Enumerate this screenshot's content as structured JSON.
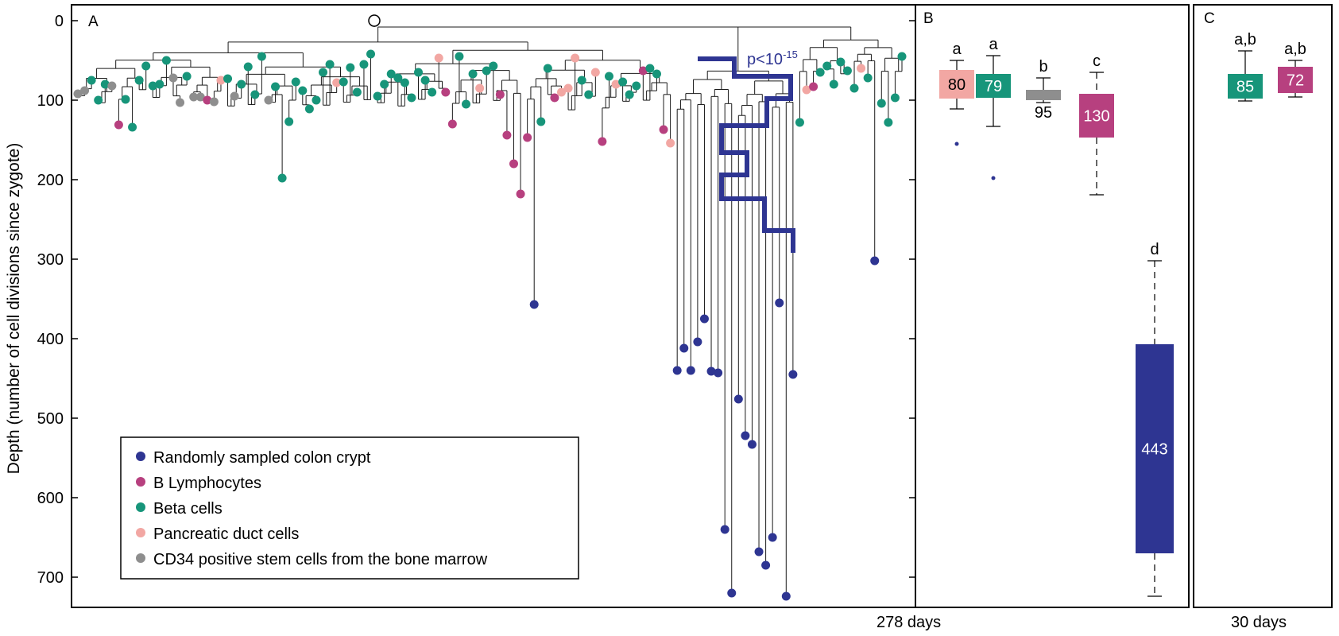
{
  "colors": {
    "colon": "#2e3592",
    "blymph": "#b7407f",
    "beta": "#17957a",
    "duct": "#f2a7a3",
    "cd34": "#8e8e8e",
    "frame": "#000000",
    "tree": "#1a1a1a"
  },
  "panels": {
    "A": {
      "label": "A"
    },
    "B": {
      "label": "B",
      "caption": "278 days"
    },
    "C": {
      "label": "C",
      "caption": "30 days"
    }
  },
  "y_axis": {
    "label": "Depth (number of cell divisions since zygote)",
    "ticks": [
      0,
      100,
      200,
      300,
      400,
      500,
      600,
      700
    ],
    "range": [
      -20,
      735
    ]
  },
  "annotation": {
    "pvalue": "p<10-15",
    "base": "p<10",
    "exp": "-15"
  },
  "legend": [
    {
      "key": "colon",
      "label": "Randomly sampled colon crypt"
    },
    {
      "key": "blymph",
      "label": "B Lymphocytes"
    },
    {
      "key": "beta",
      "label": "Beta cells"
    },
    {
      "key": "duct",
      "label": "Pancreatic duct cells"
    },
    {
      "key": "cd34",
      "label": "CD34 positive stem cells from the bone marrow"
    }
  ],
  "chart_data": [
    {
      "type": "scatter",
      "panel": "A",
      "description_kind": "lineage tree leaf depths",
      "ylabel": "Depth (number of cell divisions since zygote)",
      "ylim": [
        0,
        730
      ],
      "leaves": [
        {
          "cell": "cd34",
          "depth": 92
        },
        {
          "cell": "cd34",
          "depth": 88
        },
        {
          "cell": "beta",
          "depth": 75
        },
        {
          "cell": "beta",
          "depth": 100
        },
        {
          "cell": "beta",
          "depth": 80
        },
        {
          "cell": "cd34",
          "depth": 82
        },
        {
          "cell": "blymph",
          "depth": 131
        },
        {
          "cell": "beta",
          "depth": 99
        },
        {
          "cell": "beta",
          "depth": 134
        },
        {
          "cell": "beta",
          "depth": 75
        },
        {
          "cell": "beta",
          "depth": 57
        },
        {
          "cell": "beta",
          "depth": 82
        },
        {
          "cell": "beta",
          "depth": 80
        },
        {
          "cell": "beta",
          "depth": 50
        },
        {
          "cell": "cd34",
          "depth": 72
        },
        {
          "cell": "cd34",
          "depth": 103
        },
        {
          "cell": "beta",
          "depth": 70
        },
        {
          "cell": "cd34",
          "depth": 96
        },
        {
          "cell": "cd34",
          "depth": 96
        },
        {
          "cell": "blymph",
          "depth": 100
        },
        {
          "cell": "cd34",
          "depth": 102
        },
        {
          "cell": "duct",
          "depth": 75
        },
        {
          "cell": "beta",
          "depth": 73
        },
        {
          "cell": "cd34",
          "depth": 95
        },
        {
          "cell": "beta",
          "depth": 80
        },
        {
          "cell": "beta",
          "depth": 58
        },
        {
          "cell": "beta",
          "depth": 93
        },
        {
          "cell": "beta",
          "depth": 45
        },
        {
          "cell": "cd34",
          "depth": 100
        },
        {
          "cell": "beta",
          "depth": 83
        },
        {
          "cell": "beta",
          "depth": 198
        },
        {
          "cell": "beta",
          "depth": 127
        },
        {
          "cell": "beta",
          "depth": 77
        },
        {
          "cell": "beta",
          "depth": 88
        },
        {
          "cell": "beta",
          "depth": 111
        },
        {
          "cell": "beta",
          "depth": 100
        },
        {
          "cell": "beta",
          "depth": 65
        },
        {
          "cell": "beta",
          "depth": 55
        },
        {
          "cell": "duct",
          "depth": 78
        },
        {
          "cell": "beta",
          "depth": 77
        },
        {
          "cell": "beta",
          "depth": 59
        },
        {
          "cell": "beta",
          "depth": 90
        },
        {
          "cell": "beta",
          "depth": 55
        },
        {
          "cell": "beta",
          "depth": 42
        },
        {
          "cell": "beta",
          "depth": 95
        },
        {
          "cell": "beta",
          "depth": 80
        },
        {
          "cell": "beta",
          "depth": 67
        },
        {
          "cell": "beta",
          "depth": 72
        },
        {
          "cell": "beta",
          "depth": 78
        },
        {
          "cell": "beta",
          "depth": 97
        },
        {
          "cell": "beta",
          "depth": 65
        },
        {
          "cell": "beta",
          "depth": 75
        },
        {
          "cell": "beta",
          "depth": 90
        },
        {
          "cell": "duct",
          "depth": 47
        },
        {
          "cell": "blymph",
          "depth": 90
        },
        {
          "cell": "blymph",
          "depth": 130
        },
        {
          "cell": "beta",
          "depth": 45
        },
        {
          "cell": "beta",
          "depth": 105
        },
        {
          "cell": "beta",
          "depth": 67
        },
        {
          "cell": "duct",
          "depth": 85
        },
        {
          "cell": "beta",
          "depth": 63
        },
        {
          "cell": "beta",
          "depth": 57
        },
        {
          "cell": "blymph",
          "depth": 93
        },
        {
          "cell": "blymph",
          "depth": 144
        },
        {
          "cell": "blymph",
          "depth": 180
        },
        {
          "cell": "blymph",
          "depth": 218
        },
        {
          "cell": "blymph",
          "depth": 147
        },
        {
          "cell": "colon",
          "depth": 357
        },
        {
          "cell": "beta",
          "depth": 127
        },
        {
          "cell": "beta",
          "depth": 60
        },
        {
          "cell": "blymph",
          "depth": 97
        },
        {
          "cell": "duct",
          "depth": 90
        },
        {
          "cell": "duct",
          "depth": 85
        },
        {
          "cell": "duct",
          "depth": 47
        },
        {
          "cell": "beta",
          "depth": 75
        },
        {
          "cell": "beta",
          "depth": 93
        },
        {
          "cell": "duct",
          "depth": 65
        },
        {
          "cell": "blymph",
          "depth": 152
        },
        {
          "cell": "beta",
          "depth": 70
        },
        {
          "cell": "duct",
          "depth": 80
        },
        {
          "cell": "beta",
          "depth": 77
        },
        {
          "cell": "beta",
          "depth": 93
        },
        {
          "cell": "beta",
          "depth": 82
        },
        {
          "cell": "blymph",
          "depth": 63
        },
        {
          "cell": "beta",
          "depth": 60
        },
        {
          "cell": "beta",
          "depth": 67
        },
        {
          "cell": "blymph",
          "depth": 137
        },
        {
          "cell": "duct",
          "depth": 154
        },
        {
          "cell": "colon",
          "depth": 440
        },
        {
          "cell": "colon",
          "depth": 412
        },
        {
          "cell": "colon",
          "depth": 440
        },
        {
          "cell": "colon",
          "depth": 404
        },
        {
          "cell": "colon",
          "depth": 375
        },
        {
          "cell": "colon",
          "depth": 441
        },
        {
          "cell": "colon",
          "depth": 443
        },
        {
          "cell": "colon",
          "depth": 640
        },
        {
          "cell": "colon",
          "depth": 720
        },
        {
          "cell": "colon",
          "depth": 476
        },
        {
          "cell": "colon",
          "depth": 522
        },
        {
          "cell": "colon",
          "depth": 533
        },
        {
          "cell": "colon",
          "depth": 668
        },
        {
          "cell": "colon",
          "depth": 685
        },
        {
          "cell": "colon",
          "depth": 650
        },
        {
          "cell": "colon",
          "depth": 355
        },
        {
          "cell": "colon",
          "depth": 724
        },
        {
          "cell": "colon",
          "depth": 445
        },
        {
          "cell": "beta",
          "depth": 128
        },
        {
          "cell": "duct",
          "depth": 87
        },
        {
          "cell": "blymph",
          "depth": 83
        },
        {
          "cell": "beta",
          "depth": 65
        },
        {
          "cell": "beta",
          "depth": 57
        },
        {
          "cell": "beta",
          "depth": 80
        },
        {
          "cell": "beta",
          "depth": 52
        },
        {
          "cell": "beta",
          "depth": 63
        },
        {
          "cell": "beta",
          "depth": 85
        },
        {
          "cell": "duct",
          "depth": 60
        },
        {
          "cell": "beta",
          "depth": 72
        },
        {
          "cell": "colon",
          "depth": 302
        },
        {
          "cell": "beta",
          "depth": 104
        },
        {
          "cell": "beta",
          "depth": 128
        },
        {
          "cell": "beta",
          "depth": 97
        },
        {
          "cell": "beta",
          "depth": 45
        }
      ]
    },
    {
      "type": "box",
      "panel": "B",
      "ylim": [
        0,
        730
      ],
      "series": [
        {
          "cell": "duct",
          "letter": "a",
          "median": 80,
          "q1": 62,
          "q3": 98,
          "whisker_low": 50,
          "whisker_high": 111,
          "outliers": [
            155
          ]
        },
        {
          "cell": "beta",
          "letter": "a",
          "median": 79,
          "q1": 67,
          "q3": 97,
          "whisker_low": 44,
          "whisker_high": 133,
          "outliers": [
            198
          ]
        },
        {
          "cell": "cd34",
          "letter": "b",
          "median": 95,
          "q1": 87,
          "q3": 100,
          "whisker_low": 72,
          "whisker_high": 103,
          "outliers": []
        },
        {
          "cell": "blymph",
          "letter": "c",
          "median": 130,
          "q1": 92,
          "q3": 147,
          "whisker_low": 65,
          "whisker_high": 219,
          "outliers": []
        },
        {
          "cell": "colon",
          "letter": "d",
          "median": 443,
          "q1": 407,
          "q3": 670,
          "whisker_low": 302,
          "whisker_high": 724,
          "outliers": []
        }
      ]
    },
    {
      "type": "box",
      "panel": "C",
      "ylim": [
        0,
        730
      ],
      "series": [
        {
          "cell": "beta",
          "letter": "a,b",
          "median": 85,
          "q1": 67,
          "q3": 98,
          "whisker_low": 38,
          "whisker_high": 101,
          "outliers": []
        },
        {
          "cell": "blymph",
          "letter": "a,b",
          "median": 72,
          "q1": 58,
          "q3": 91,
          "whisker_low": 50,
          "whisker_high": 96,
          "outliers": []
        }
      ]
    }
  ]
}
